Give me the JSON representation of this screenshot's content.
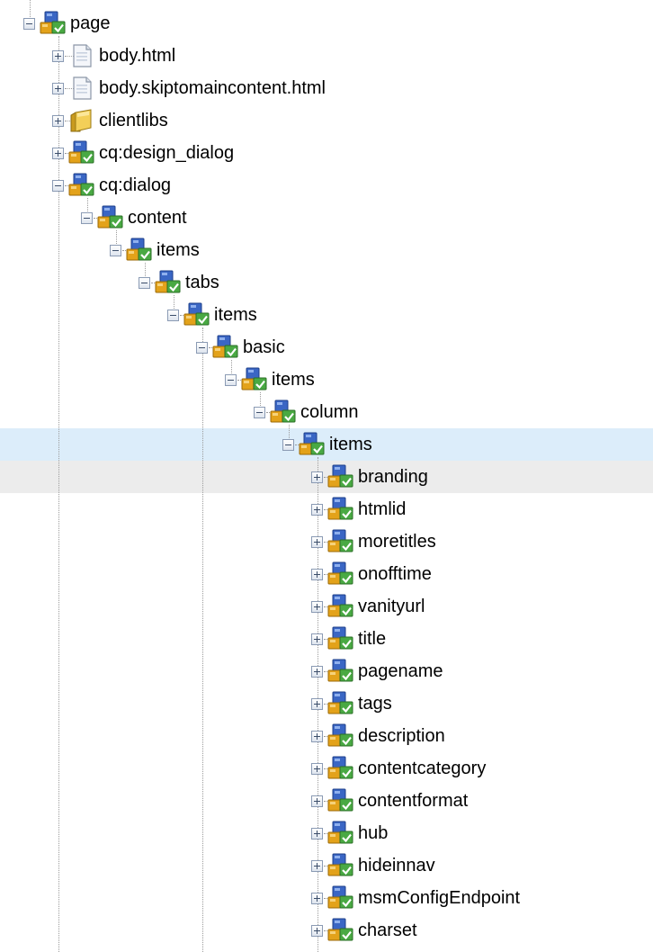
{
  "tree": {
    "nodes": [
      {
        "label": "page",
        "depth": 0,
        "icon": "component-node-icon",
        "expanded": true
      },
      {
        "label": "body.html",
        "depth": 1,
        "icon": "file-icon",
        "expanded": false
      },
      {
        "label": "body.skiptomaincontent.html",
        "depth": 1,
        "icon": "file-icon",
        "expanded": false
      },
      {
        "label": "clientlibs",
        "depth": 1,
        "icon": "folder-icon",
        "expanded": false
      },
      {
        "label": "cq:design_dialog",
        "depth": 1,
        "icon": "component-node-icon",
        "expanded": false
      },
      {
        "label": "cq:dialog",
        "depth": 1,
        "icon": "component-node-icon",
        "expanded": true
      },
      {
        "label": "content",
        "depth": 2,
        "icon": "component-node-icon",
        "expanded": true
      },
      {
        "label": "items",
        "depth": 3,
        "icon": "component-node-icon",
        "expanded": true
      },
      {
        "label": "tabs",
        "depth": 4,
        "icon": "component-node-icon",
        "expanded": true
      },
      {
        "label": "items",
        "depth": 5,
        "icon": "component-node-icon",
        "expanded": true
      },
      {
        "label": "basic",
        "depth": 6,
        "icon": "component-node-icon",
        "expanded": true
      },
      {
        "label": "items",
        "depth": 7,
        "icon": "component-node-icon",
        "expanded": true
      },
      {
        "label": "column",
        "depth": 8,
        "icon": "component-node-icon",
        "expanded": true
      },
      {
        "label": "items",
        "depth": 9,
        "icon": "component-node-icon",
        "expanded": true,
        "selected": true
      },
      {
        "label": "branding",
        "depth": 10,
        "icon": "component-node-icon",
        "expanded": false,
        "hover": true
      },
      {
        "label": "htmlid",
        "depth": 10,
        "icon": "component-node-icon",
        "expanded": false
      },
      {
        "label": "moretitles",
        "depth": 10,
        "icon": "component-node-icon",
        "expanded": false
      },
      {
        "label": "onofftime",
        "depth": 10,
        "icon": "component-node-icon",
        "expanded": false
      },
      {
        "label": "vanityurl",
        "depth": 10,
        "icon": "component-node-icon",
        "expanded": false
      },
      {
        "label": "title",
        "depth": 10,
        "icon": "component-node-icon",
        "expanded": false
      },
      {
        "label": "pagename",
        "depth": 10,
        "icon": "component-node-icon",
        "expanded": false
      },
      {
        "label": "tags",
        "depth": 10,
        "icon": "component-node-icon",
        "expanded": false
      },
      {
        "label": "description",
        "depth": 10,
        "icon": "component-node-icon",
        "expanded": false
      },
      {
        "label": "contentcategory",
        "depth": 10,
        "icon": "component-node-icon",
        "expanded": false
      },
      {
        "label": "contentformat",
        "depth": 10,
        "icon": "component-node-icon",
        "expanded": false
      },
      {
        "label": "hub",
        "depth": 10,
        "icon": "component-node-icon",
        "expanded": false
      },
      {
        "label": "hideinnav",
        "depth": 10,
        "icon": "component-node-icon",
        "expanded": false
      },
      {
        "label": "msmConfigEndpoint",
        "depth": 10,
        "icon": "component-node-icon",
        "expanded": false
      },
      {
        "label": "charset",
        "depth": 10,
        "icon": "component-node-icon",
        "expanded": false
      }
    ]
  },
  "colors": {
    "selected_row": "#dcedfa",
    "hover_row": "#ececec",
    "connector": "#9c9c9c"
  }
}
